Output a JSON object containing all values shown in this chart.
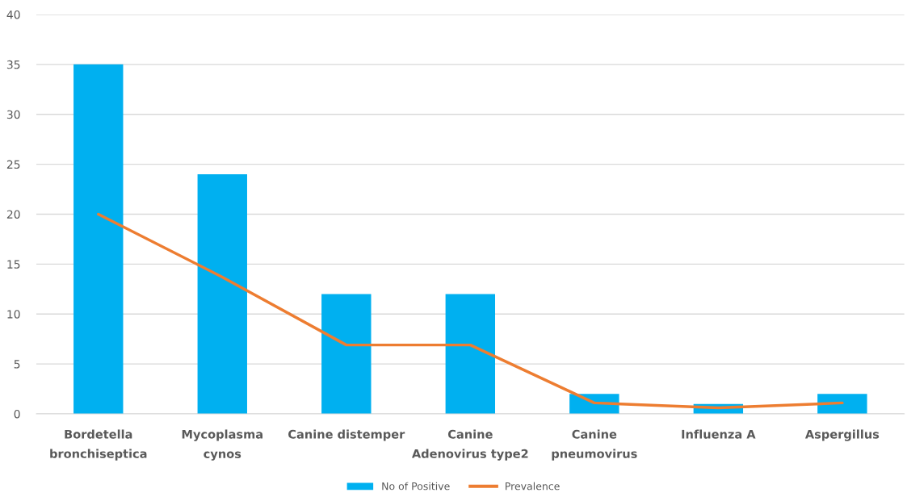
{
  "chart_data": {
    "type": "bar",
    "categories": [
      "Bordetella\nbronchiseptica",
      "Mycoplasma\ncynos",
      "Canine distemper",
      "Canine\nAdenovirus type2",
      "Canine\npneumovirus",
      "Influenza A",
      "Aspergillus"
    ],
    "series": [
      {
        "name": "No of Positive",
        "color": "#00b0f0",
        "values": [
          35,
          24,
          12,
          12,
          2,
          1,
          2
        ]
      },
      {
        "name": "Prevalence",
        "type": "line",
        "color": "#ed7d31",
        "values": [
          20,
          13.7,
          6.9,
          6.9,
          1.1,
          0.6,
          1.1
        ]
      }
    ],
    "ylim": [
      0,
      40
    ],
    "yticks": [
      0,
      5,
      10,
      15,
      20,
      25,
      30,
      35,
      40
    ],
    "grid": "y",
    "legend": "bottom",
    "marker": "none",
    "line_style": "solid"
  }
}
